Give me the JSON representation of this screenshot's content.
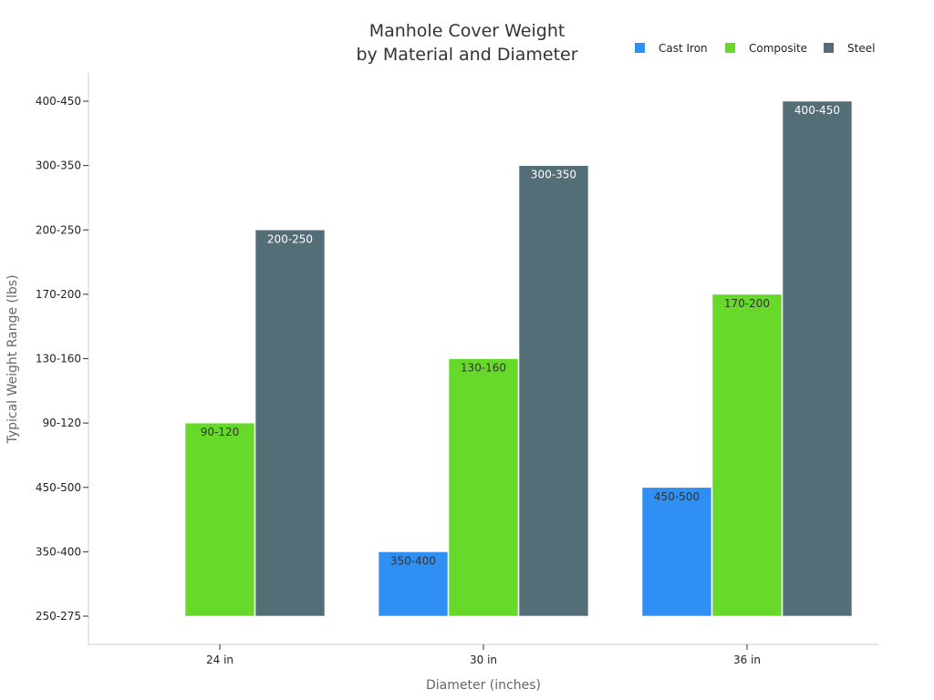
{
  "chart_data": {
    "type": "bar",
    "title": [
      "Manhole Cover Weight",
      "by Material and Diameter"
    ],
    "xlabel": "Diameter (inches)",
    "ylabel": "Typical Weight Range (lbs)",
    "y_categories": [
      "250-275",
      "350-400",
      "450-500",
      "90-120",
      "130-160",
      "170-200",
      "200-250",
      "300-350",
      "400-450"
    ],
    "categories": [
      "24 in",
      "30 in",
      "36 in"
    ],
    "legend_position": "top-right",
    "grid": false,
    "series": [
      {
        "name": "Cast Iron",
        "color": "#2f8ff2",
        "label_color": "#333333",
        "values": [
          null,
          "350-400",
          "450-500"
        ]
      },
      {
        "name": "Composite",
        "color": "#66d92a",
        "label_color": "#333333",
        "values": [
          "90-120",
          "130-160",
          "170-200"
        ]
      },
      {
        "name": "Steel",
        "color": "#546e78",
        "label_color": "#ffffff",
        "values": [
          "200-250",
          "300-350",
          "400-450"
        ]
      }
    ]
  }
}
